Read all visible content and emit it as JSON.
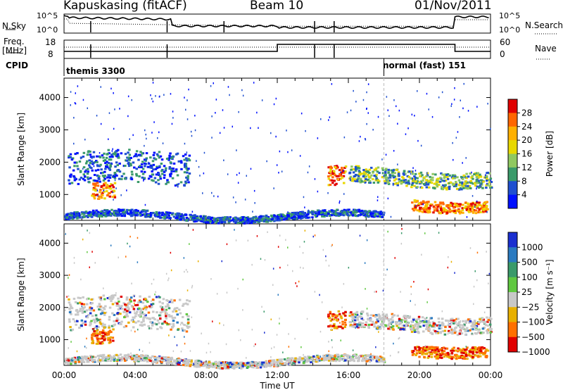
{
  "header": {
    "radar": "Kapuskasing (fitACF)",
    "beam": "Beam 10",
    "date": "01/Nov/2011"
  },
  "status_panels": {
    "nsky_label": "N.Sky",
    "nsearch_label": "N.Search",
    "nsky_ticks": [
      "10^5",
      "10^0"
    ],
    "freq_label_1": "Freq.",
    "freq_label_2": "[MHz]",
    "freq_ticks": [
      "18",
      "8"
    ],
    "nave_label": "Nave",
    "nave_ticks": [
      "60",
      "0"
    ],
    "cpid_label": "CPID",
    "cpid_segments": [
      "themis 3300",
      "normal (fast) 151"
    ]
  },
  "chart_data": [
    {
      "type": "heatmap",
      "name": "power-panel",
      "ylabel": "Slant Range [km]",
      "y_ticks": [
        1000,
        2000,
        3000,
        4000
      ],
      "ylim": [
        200,
        4600
      ],
      "xlim_hours": [
        0,
        24
      ],
      "colorbar_label": "Power [dB]",
      "colorbar_ticks": [
        "28",
        "24",
        "20",
        "16",
        "12",
        "8",
        "4"
      ],
      "colors": [
        "#e00000",
        "#ff6600",
        "#ffb000",
        "#e8d800",
        "#90c860",
        "#3a9a6a",
        "#1f4fd0",
        "#0010ff"
      ],
      "echo_bands": [
        {
          "t": [
            0.2,
            7.0
          ],
          "range": [
            1300,
            2300
          ],
          "level": "low"
        },
        {
          "t": [
            1.5,
            2.8
          ],
          "range": [
            800,
            1300
          ],
          "level": "high"
        },
        {
          "t": [
            14.8,
            15.8
          ],
          "range": [
            1200,
            1800
          ],
          "level": "high"
        },
        {
          "t": [
            16.0,
            24.0
          ],
          "range": [
            1300,
            1800
          ],
          "level": "mid"
        },
        {
          "t": [
            19.5,
            23.8
          ],
          "range": [
            550,
            900
          ],
          "level": "high"
        },
        {
          "t": [
            0.0,
            18.0
          ],
          "range": [
            250,
            450
          ],
          "level": "low"
        }
      ]
    },
    {
      "type": "heatmap",
      "name": "velocity-panel",
      "ylabel": "Slant Range [km]",
      "xlabel": "Time UT",
      "x_ticks": [
        "00:00",
        "04:00",
        "08:00",
        "12:00",
        "16:00",
        "20:00",
        "00:00"
      ],
      "y_ticks": [
        1000,
        2000,
        3000,
        4000
      ],
      "ylim": [
        200,
        4600
      ],
      "xlim_hours": [
        0,
        24
      ],
      "colorbar_label": "Velocity [m s⁻¹]",
      "colorbar_ticks": [
        "1000",
        "500",
        "100",
        "25",
        "−25",
        "−100",
        "−500",
        "−1000"
      ],
      "colors": [
        "#1a2fd0",
        "#2a7ac0",
        "#3a9a6a",
        "#60c840",
        "#c8c8c8",
        "#e8b000",
        "#ff7000",
        "#e00000"
      ]
    }
  ]
}
